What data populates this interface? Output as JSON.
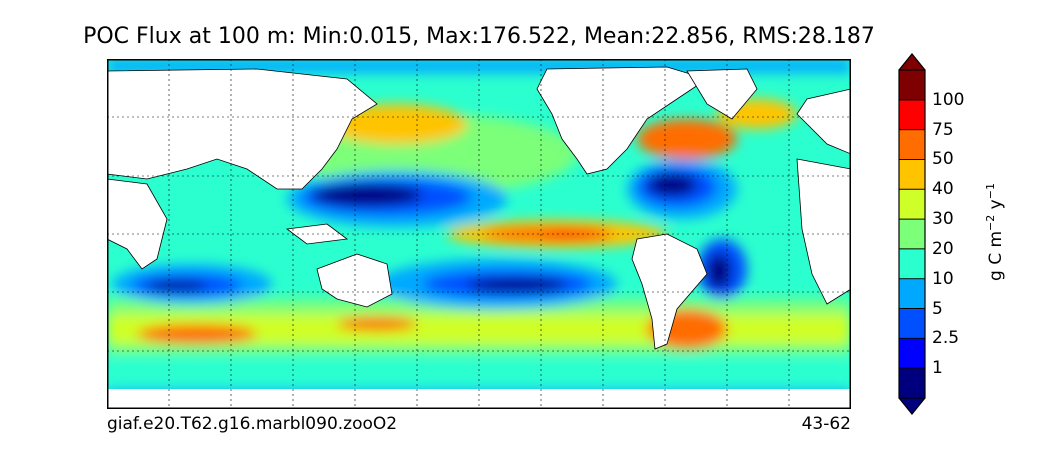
{
  "title": "POC Flux at 100 m: Min:0.015, Max:176.522, Mean:22.856, RMS:28.187",
  "caption_left": "giaf.e20.T62.g16.marbl090.zooO2",
  "caption_right": "43-62",
  "colorbar": {
    "label_main": "g C m",
    "label_exp1": "−2",
    "label_mid": " y",
    "label_exp2": "−1",
    "levels": [
      "1",
      "2.5",
      "5",
      "10",
      "20",
      "30",
      "40",
      "50",
      "75",
      "100"
    ],
    "colors": [
      "#00007f",
      "#0000ff",
      "#0050ff",
      "#00a9ff",
      "#2bffcf",
      "#7cff79",
      "#cfff28",
      "#ffc400",
      "#ff6d00",
      "#ff0000",
      "#7f0000"
    ]
  }
}
